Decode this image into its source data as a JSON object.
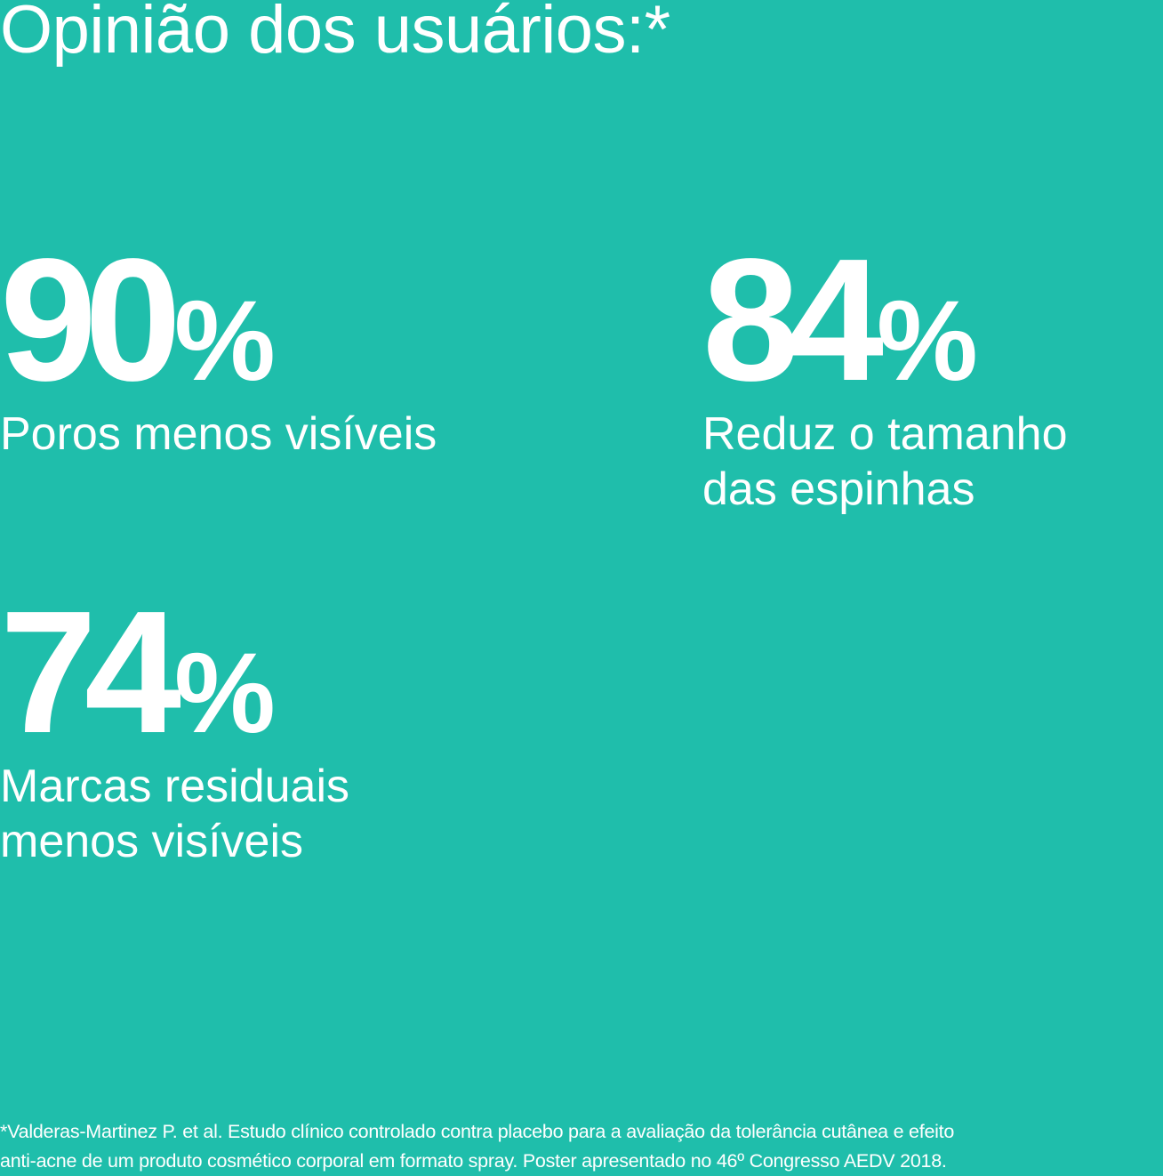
{
  "title": "Opinião dos usuários:*",
  "stats": [
    {
      "value": "90",
      "unit": "%",
      "label_lines": [
        "Poros menos visíveis"
      ]
    },
    {
      "value": "84",
      "unit": "%",
      "label_lines": [
        "Reduz o tamanho",
        "das espinhas"
      ]
    },
    {
      "value": "74",
      "unit": "%",
      "label_lines": [
        "Marcas residuais",
        "menos visíveis"
      ]
    }
  ],
  "footnote": {
    "line1": "*Valderas-Martinez P. et al. Estudo clínico controlado contra placebo para a avaliação da tolerância cutânea e efeito",
    "line2": "anti-acne de um produto cosmético corporal em formato spray. Poster apresentado no 46º Congresso AEDV 2018."
  },
  "colors": {
    "background": "#1fbeab",
    "text": "#ffffff"
  }
}
